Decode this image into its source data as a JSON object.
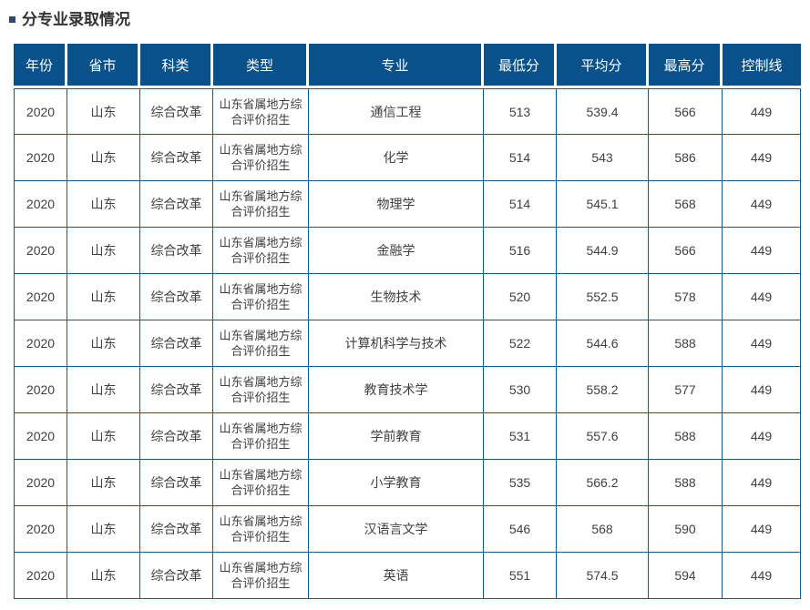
{
  "section": {
    "title": "分专业录取情况"
  },
  "table": {
    "headers": [
      "年份",
      "省市",
      "科类",
      "类型",
      "专业",
      "最低分",
      "平均分",
      "最高分",
      "控制线"
    ],
    "rows": [
      [
        "2020",
        "山东",
        "综合改革",
        "山东省属地方综合评价招生",
        "通信工程",
        "513",
        "539.4",
        "566",
        "449"
      ],
      [
        "2020",
        "山东",
        "综合改革",
        "山东省属地方综合评价招生",
        "化学",
        "514",
        "543",
        "586",
        "449"
      ],
      [
        "2020",
        "山东",
        "综合改革",
        "山东省属地方综合评价招生",
        "物理学",
        "514",
        "545.1",
        "568",
        "449"
      ],
      [
        "2020",
        "山东",
        "综合改革",
        "山东省属地方综合评价招生",
        "金融学",
        "516",
        "544.9",
        "566",
        "449"
      ],
      [
        "2020",
        "山东",
        "综合改革",
        "山东省属地方综合评价招生",
        "生物技术",
        "520",
        "552.5",
        "578",
        "449"
      ],
      [
        "2020",
        "山东",
        "综合改革",
        "山东省属地方综合评价招生",
        "计算机科学与技术",
        "522",
        "544.6",
        "588",
        "449"
      ],
      [
        "2020",
        "山东",
        "综合改革",
        "山东省属地方综合评价招生",
        "教育技术学",
        "530",
        "558.2",
        "577",
        "449"
      ],
      [
        "2020",
        "山东",
        "综合改革",
        "山东省属地方综合评价招生",
        "学前教育",
        "531",
        "557.6",
        "588",
        "449"
      ],
      [
        "2020",
        "山东",
        "综合改革",
        "山东省属地方综合评价招生",
        "小学教育",
        "535",
        "566.2",
        "588",
        "449"
      ],
      [
        "2020",
        "山东",
        "综合改革",
        "山东省属地方综合评价招生",
        "汉语言文学",
        "546",
        "568",
        "590",
        "449"
      ],
      [
        "2020",
        "山东",
        "综合改革",
        "山东省属地方综合评价招生",
        "英语",
        "551",
        "574.5",
        "594",
        "449"
      ]
    ]
  },
  "colors": {
    "header_bg": "#09518a",
    "header_text": "#ffffff",
    "border_color": "#16598c",
    "body_text": "#404040",
    "title_color": "#333333",
    "bullet_color": "#2c4a66"
  }
}
